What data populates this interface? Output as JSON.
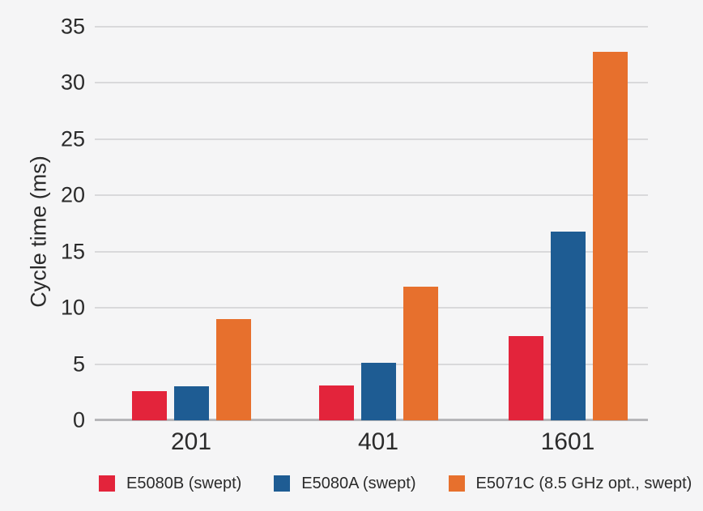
{
  "colors": {
    "background": "#f5f5f6",
    "gridline": "#d9d9db",
    "axis_line": "#b6b6b9",
    "text": "#2b2b2b",
    "series_red": "#e3243b",
    "series_blue": "#1e5c93",
    "series_orange": "#e7702d"
  },
  "chart_data": {
    "type": "bar",
    "title": "",
    "xlabel": "",
    "ylabel": "Cycle time (ms)",
    "ylim": [
      0,
      35
    ],
    "yticks": [
      0,
      5,
      10,
      15,
      20,
      25,
      30,
      35
    ],
    "grid": true,
    "legend_position": "bottom",
    "categories": [
      "201",
      "401",
      "1601"
    ],
    "series": [
      {
        "name": "E5080B (swept)",
        "color": "#e3243b",
        "values": [
          2.6,
          3.1,
          7.5
        ]
      },
      {
        "name": "E5080A (swept)",
        "color": "#1e5c93",
        "values": [
          3.0,
          5.1,
          16.8
        ]
      },
      {
        "name": "E5071C (8.5 GHz opt., swept)",
        "color": "#e7702d",
        "values": [
          9.0,
          11.9,
          32.8
        ]
      }
    ]
  }
}
